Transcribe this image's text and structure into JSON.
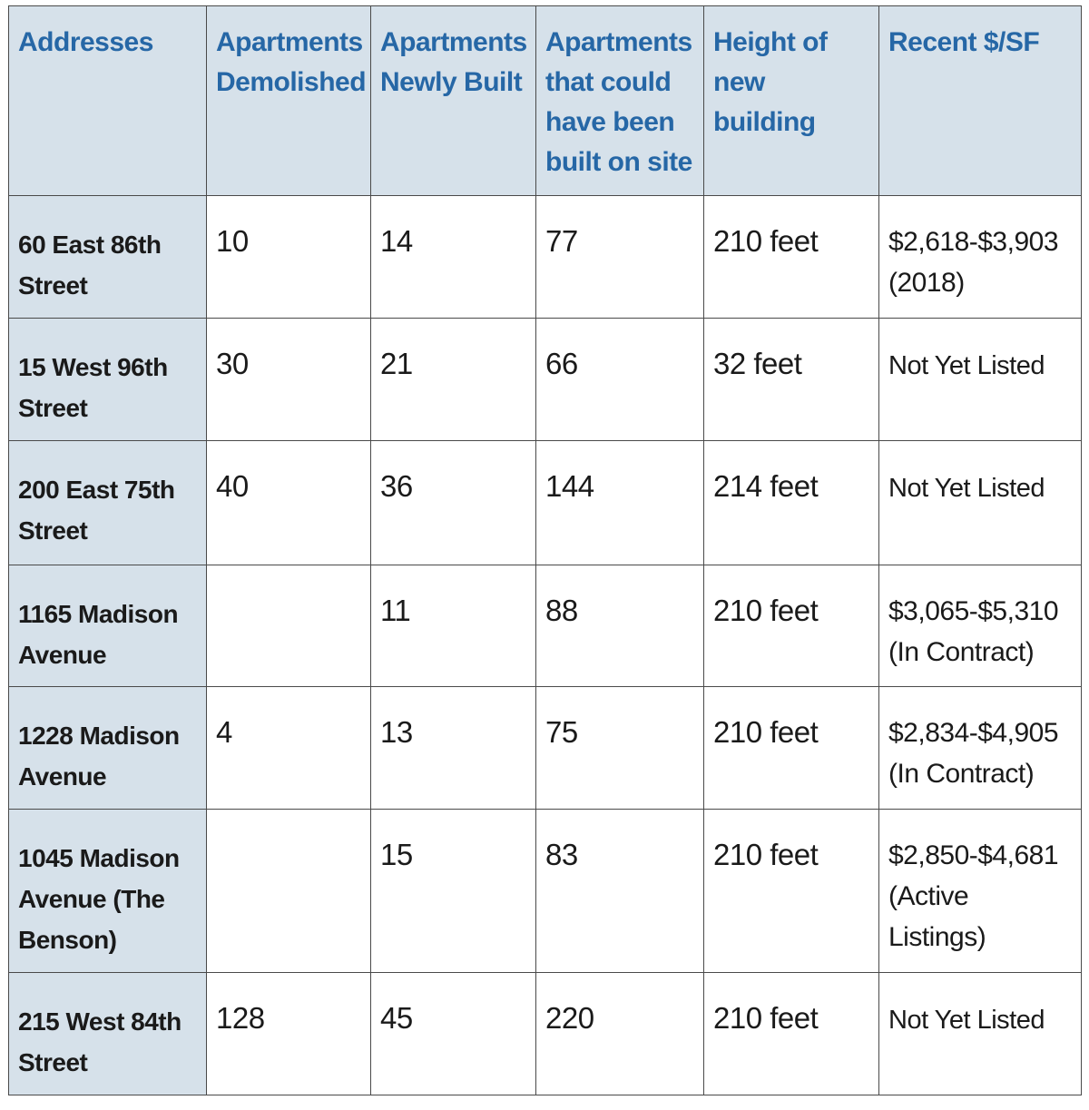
{
  "headers": [
    "Addresses",
    "Apartments Demolished",
    "Apartments Newly Built",
    "Apartments that could have been built on site",
    "Height of new building",
    "Recent $/SF"
  ],
  "rows": [
    {
      "address": "60 East 86th Street",
      "demolished": "10",
      "built": "14",
      "could_build": "77",
      "height": "210 feet",
      "price": "$2,618-$3,903",
      "price_note": "(2018)"
    },
    {
      "address": "15 West 96th Street",
      "demolished": "30",
      "built": "21",
      "could_build": "66",
      "height": "32 feet",
      "price": "Not Yet Listed",
      "price_note": ""
    },
    {
      "address": "200 East 75th Street",
      "demolished": "40",
      "built": "36",
      "could_build": "144",
      "height": "214 feet",
      "price": "Not Yet Listed",
      "price_note": ""
    },
    {
      "address": "1165 Madison Avenue",
      "demolished": "",
      "built": "11",
      "could_build": "88",
      "height": "210 feet",
      "price": "$3,065-$5,310",
      "price_note": "(In Contract)"
    },
    {
      "address": "1228 Madison Avenue",
      "demolished": "4",
      "built": "13",
      "could_build": "75",
      "height": "210 feet",
      "price": "$2,834-$4,905",
      "price_note": "(In Contract)"
    },
    {
      "address": "1045 Madison Avenue (The Benson)",
      "demolished": "",
      "built": "15",
      "could_build": "83",
      "height": "210 feet",
      "price": "$2,850-$4,681",
      "price_note": "(Active Listings)"
    },
    {
      "address": "215 West 84th Street",
      "demolished": "128",
      "built": "45",
      "could_build": "220",
      "height": "210 feet",
      "price": "Not Yet Listed",
      "price_note": ""
    }
  ]
}
